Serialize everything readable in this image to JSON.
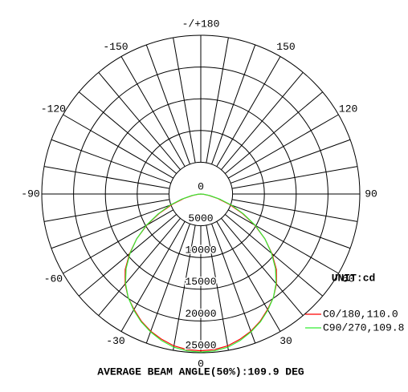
{
  "chart_data": {
    "type": "polar",
    "footer": "AVERAGE BEAM ANGLE(50%):109.9 DEG",
    "legend_title": "UNIT:cd",
    "legend": "bottom right",
    "rlim": [
      0,
      25000
    ],
    "rticks": [
      0,
      5000,
      10000,
      15000,
      20000,
      25000
    ],
    "thetaticks": [
      -150,
      -120,
      -90,
      -60,
      -30,
      0,
      30,
      60,
      90,
      120,
      {
        "value": 180,
        "label": "-/+180"
      },
      150
    ],
    "thetagrid": [
      -170,
      -160,
      -150,
      -140,
      -130,
      -120,
      -110,
      -100,
      -90,
      -80,
      -70,
      -60,
      -50,
      -40,
      -30,
      -20,
      -10,
      0,
      10,
      20,
      30,
      40,
      50,
      60,
      70,
      80,
      90,
      100,
      110,
      120,
      130,
      140,
      150,
      160,
      170,
      180
    ],
    "angles": [
      -90,
      -85,
      -80,
      -75,
      -70,
      -65,
      -60,
      -55,
      -50,
      -45,
      -40,
      -35,
      -30,
      -25,
      -20,
      -15,
      -10,
      -5,
      0,
      5,
      10,
      15,
      20,
      25,
      30,
      35,
      40,
      45,
      50,
      55,
      60,
      65,
      70,
      75,
      80,
      85,
      90
    ],
    "series": [
      {
        "name": "C0/180,110.0",
        "color": "#ff0000",
        "values": [
          0,
          400,
          1300,
          2800,
          4800,
          7200,
          9800,
          12300,
          14600,
          16800,
          18500,
          19900,
          21000,
          22100,
          23000,
          23700,
          24300,
          24600,
          24700,
          24600,
          24300,
          23700,
          23000,
          22100,
          21000,
          19900,
          18500,
          16800,
          14600,
          12300,
          9800,
          7200,
          4800,
          2800,
          1300,
          400,
          0
        ]
      },
      {
        "name": "C90/270,109.8",
        "color": "#33ee33",
        "values": [
          0,
          500,
          1500,
          3100,
          5100,
          7400,
          9900,
          12300,
          14500,
          16600,
          18400,
          19900,
          21100,
          22200,
          23100,
          23900,
          24500,
          24800,
          24900,
          24800,
          24500,
          23900,
          23100,
          22200,
          21100,
          19900,
          18400,
          16600,
          14500,
          12300,
          9900,
          7400,
          5100,
          3100,
          1500,
          500,
          0
        ]
      }
    ]
  }
}
